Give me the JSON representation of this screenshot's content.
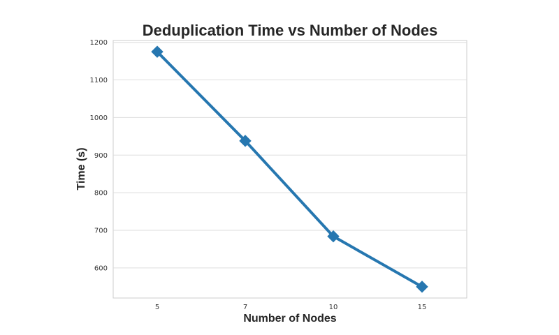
{
  "chart_data": {
    "type": "line",
    "title": "Deduplication Time vs Number of Nodes",
    "xlabel": "Number of Nodes",
    "ylabel": "Time (s)",
    "categories": [
      "5",
      "7",
      "10",
      "15"
    ],
    "series": [
      {
        "values": [
          1175,
          938,
          684,
          550
        ],
        "color": "#2677b0",
        "marker": "diamond"
      }
    ],
    "ylim": [
      520,
      1205
    ],
    "yticks": [
      600,
      700,
      800,
      900,
      1000,
      1100,
      1200
    ],
    "grid": true,
    "legend": "none"
  }
}
